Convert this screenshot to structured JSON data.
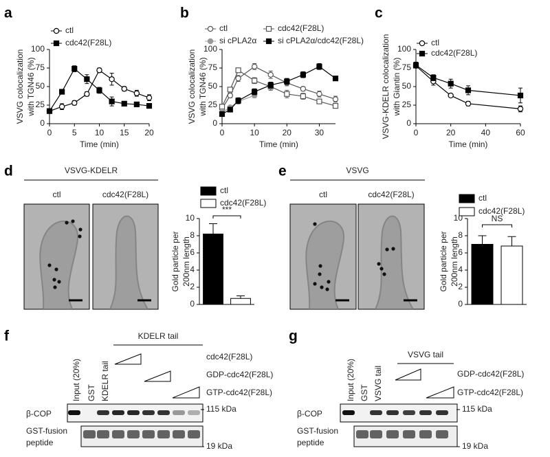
{
  "chart_data": [
    {
      "type": "line",
      "label": "a",
      "ylabel": [
        "VSVG colocalization",
        "with TGN46 (%)"
      ],
      "xlabel": "Time (min)",
      "x": [
        0,
        2.5,
        5,
        7.5,
        10,
        12.5,
        15,
        17.5,
        20
      ],
      "xlim": [
        0,
        20
      ],
      "ylim": [
        0,
        100
      ],
      "xticks": [
        0,
        5,
        10,
        15,
        20
      ],
      "yticks": [
        0,
        25,
        50,
        75,
        100
      ],
      "series": [
        {
          "name": "ctl",
          "color": "#000000",
          "marker": "circle",
          "marker_fill": "#ffffff",
          "values": [
            17,
            23,
            28,
            40,
            72,
            60,
            47,
            41,
            35
          ],
          "errors": [
            3,
            4,
            3,
            3,
            3,
            8,
            3,
            4,
            4
          ]
        },
        {
          "name": "cdc42(F28L)",
          "color": "#000000",
          "marker": "square",
          "marker_fill": "#000000",
          "values": [
            17,
            43,
            74,
            60,
            45,
            30,
            27,
            26,
            24
          ],
          "errors": [
            2,
            3,
            4,
            6,
            4,
            6,
            3,
            2,
            2
          ]
        }
      ]
    },
    {
      "type": "line",
      "label": "b",
      "ylabel": [
        "VSVG colocalization",
        "with TGN46 (%)"
      ],
      "xlabel": "Time (min)",
      "x": [
        0,
        2.5,
        5,
        10,
        15,
        20,
        25,
        30,
        35
      ],
      "xlim": [
        0,
        35
      ],
      "ylim": [
        0,
        100
      ],
      "xticks": [
        0,
        10,
        20,
        30
      ],
      "yticks": [
        0,
        25,
        50,
        75,
        100
      ],
      "series": [
        {
          "name": "ctl",
          "color": "#555555",
          "marker": "circle",
          "marker_fill": "#ffffff",
          "values": [
            20,
            38,
            61,
            77,
            66,
            55,
            47,
            40,
            33
          ],
          "errors": [
            3,
            3,
            4,
            4,
            5,
            4,
            3,
            4,
            4
          ]
        },
        {
          "name": "cdc42(F28L)",
          "color": "#555555",
          "marker": "square",
          "marker_fill": "#ffffff",
          "values": [
            23,
            46,
            72,
            58,
            50,
            40,
            37,
            30,
            24
          ],
          "errors": [
            3,
            3,
            3,
            4,
            5,
            5,
            4,
            3,
            3
          ]
        },
        {
          "name": "si cPLA2α",
          "color": "#999999",
          "marker": "circle",
          "marker_fill": "#999999",
          "values": [
            15,
            22,
            30,
            38,
            null,
            null,
            null,
            null,
            null
          ],
          "errors": [
            2,
            2,
            3,
            3,
            null,
            null,
            null,
            null,
            null
          ]
        },
        {
          "name": "si cPLA2α/cdc42(F28L)",
          "color": "#000000",
          "marker": "square",
          "marker_fill": "#000000",
          "values": [
            13,
            19,
            31,
            43,
            52,
            57,
            66,
            77,
            61
          ],
          "errors": [
            2,
            3,
            4,
            4,
            4,
            4,
            4,
            4,
            3
          ]
        }
      ]
    },
    {
      "type": "line",
      "label": "c",
      "ylabel": [
        "VSVG-KDELR colocalization",
        "with Giantin (%)"
      ],
      "xlabel": "Time (min)",
      "x": [
        0,
        10,
        20,
        30,
        60
      ],
      "xlim": [
        0,
        60
      ],
      "ylim": [
        0,
        100
      ],
      "xticks": [
        0,
        20,
        40,
        60
      ],
      "yticks": [
        0,
        25,
        50,
        75,
        100
      ],
      "series": [
        {
          "name": "ctl",
          "color": "#000000",
          "marker": "circle",
          "marker_fill": "#ffffff",
          "values": [
            78,
            57,
            38,
            27,
            20
          ],
          "errors": [
            3,
            5,
            2,
            3,
            4
          ]
        },
        {
          "name": "cdc42(F28L)",
          "color": "#000000",
          "marker": "square",
          "marker_fill": "#000000",
          "values": [
            79,
            62,
            54,
            45,
            38
          ],
          "errors": [
            4,
            4,
            6,
            6,
            10
          ]
        }
      ]
    },
    {
      "type": "bar",
      "ylabel": [
        "Gold particle per",
        "200nm length"
      ],
      "ylim": [
        0,
        10
      ],
      "yticks": [
        0,
        2,
        4,
        6,
        8,
        10
      ],
      "annotation": "***",
      "series": [
        {
          "name": "ctl",
          "color": "#000000",
          "values": [
            8.2
          ],
          "errors": [
            1.2
          ]
        },
        {
          "name": "cdc42(F28L)",
          "color": "#ffffff",
          "values": [
            0.7
          ],
          "errors": [
            0.3
          ]
        }
      ]
    },
    {
      "type": "bar",
      "ylabel": [
        "Gold particle per",
        "200nm length"
      ],
      "ylim": [
        0,
        10
      ],
      "yticks": [
        0,
        2,
        4,
        6,
        8,
        10
      ],
      "annotation": "NS",
      "series": [
        {
          "name": "ctl",
          "color": "#000000",
          "values": [
            7.0
          ],
          "errors": [
            1.0
          ]
        },
        {
          "name": "cdc42(F28L)",
          "color": "#ffffff",
          "values": [
            6.8
          ],
          "errors": [
            1.1
          ]
        }
      ]
    }
  ],
  "micrographs": [
    {
      "label": "d",
      "title": "VSVG-KDELR",
      "columns": [
        "ctl",
        "cdc42(F28L)"
      ]
    },
    {
      "label": "e",
      "title": "VSVG",
      "columns": [
        "ctl",
        "cdc42(F28L)"
      ]
    }
  ],
  "blots": [
    {
      "label": "f",
      "header": "KDELR tail",
      "lanes": [
        "Input (20%)",
        "GST",
        "KDELR tail"
      ],
      "conditions": [
        "cdc42(F28L)",
        "GDP-cdc42(F28L)",
        "GTP-cdc42(F28L)"
      ],
      "rows": [
        {
          "name": [
            "β-COP"
          ],
          "size": "115 kDa"
        },
        {
          "name": [
            "GST-fusion",
            "peptide"
          ],
          "size": "19 kDa"
        }
      ]
    },
    {
      "label": "g",
      "header": "VSVG tail",
      "lanes": [
        "Input (20%)",
        "GST",
        "VSVG tail"
      ],
      "conditions": [
        "GDP-cdc42(F28L)",
        "GTP-cdc42(F28L)"
      ],
      "rows": [
        {
          "name": [
            "β-COP"
          ],
          "size": "115 kDa"
        },
        {
          "name": [
            "GST-fusion",
            "peptide"
          ],
          "size": "19 kDa"
        }
      ]
    }
  ]
}
